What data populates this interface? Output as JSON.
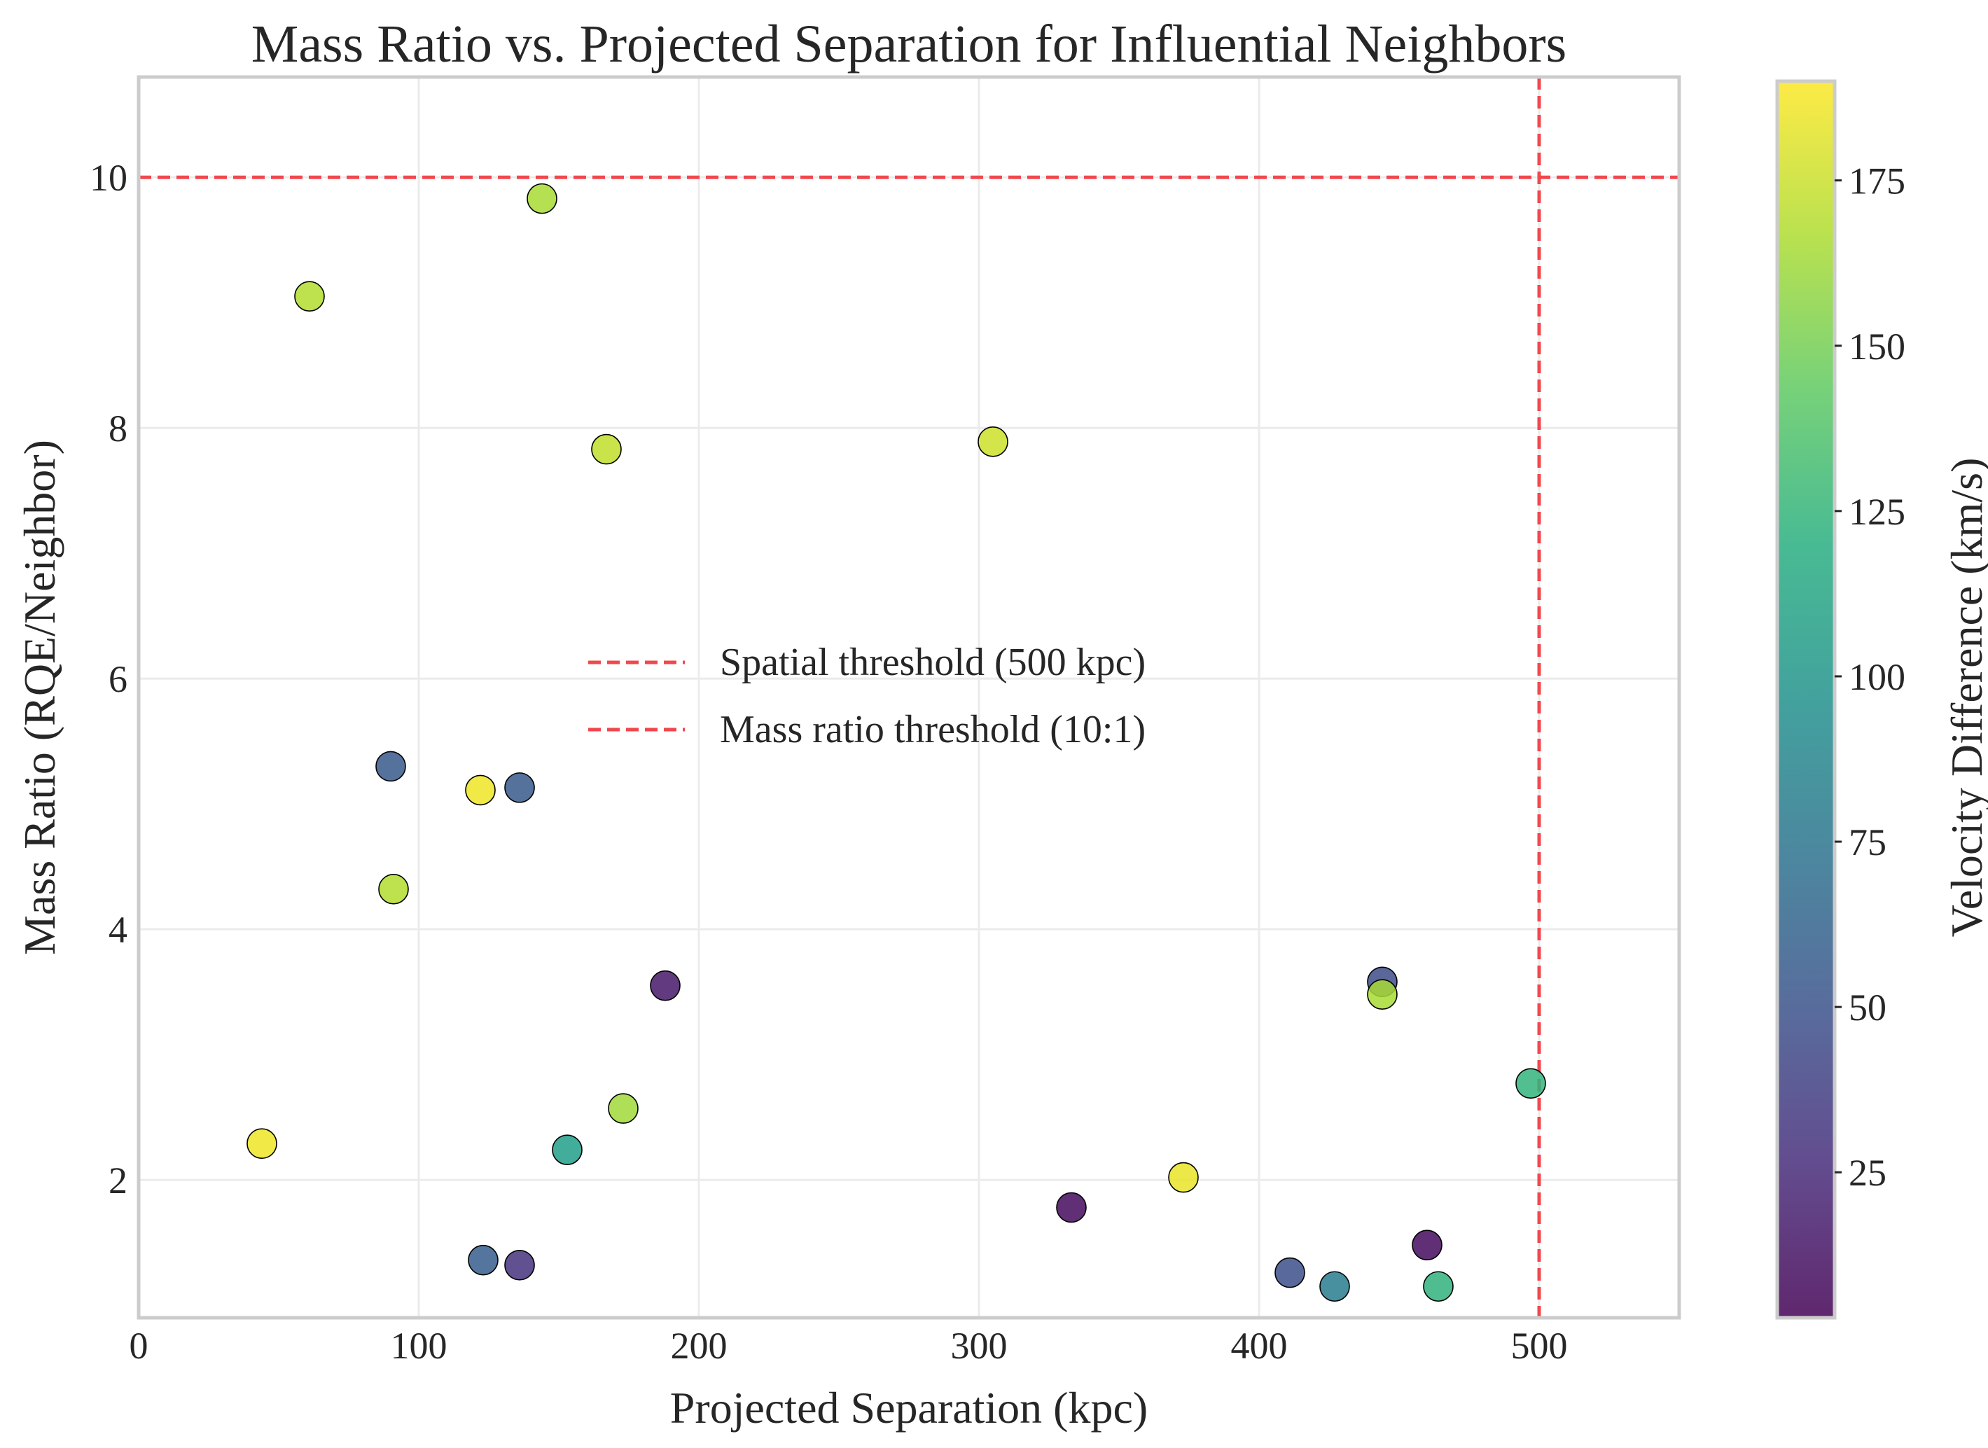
{
  "chart_data": {
    "type": "scatter",
    "title": "Mass Ratio vs. Projected Separation for Influential Neighbors",
    "xlabel": "Projected Separation (kpc)",
    "ylabel": "Mass Ratio (RQE/Neighbor)",
    "xlim": [
      0,
      550
    ],
    "ylim": [
      0.9,
      10.8
    ],
    "xticks": [
      0,
      100,
      200,
      300,
      400,
      500
    ],
    "yticks": [
      2,
      4,
      6,
      8,
      10
    ],
    "grid": true,
    "colorbar": {
      "label": "Velocity Difference (km/s)",
      "range": [
        3,
        190
      ],
      "ticks": [
        25,
        50,
        75,
        100,
        125,
        150,
        175
      ],
      "colormap": "viridis"
    },
    "thresholds": [
      {
        "name": "Spatial threshold (500 kpc)",
        "orientation": "vertical",
        "value": 500,
        "color": "#f0484e"
      },
      {
        "name": "Mass ratio threshold (10:1)",
        "orientation": "horizontal",
        "value": 10,
        "color": "#f0484e"
      }
    ],
    "legend": {
      "position": "center",
      "entries": [
        "Spatial threshold (500 kpc)",
        "Mass ratio threshold (10:1)"
      ]
    },
    "points": [
      {
        "x": 144,
        "y": 9.83,
        "v": 165
      },
      {
        "x": 61,
        "y": 9.05,
        "v": 168
      },
      {
        "x": 167,
        "y": 7.83,
        "v": 172
      },
      {
        "x": 305,
        "y": 7.89,
        "v": 176
      },
      {
        "x": 90,
        "y": 5.3,
        "v": 55
      },
      {
        "x": 122,
        "y": 5.11,
        "v": 186
      },
      {
        "x": 136,
        "y": 5.13,
        "v": 55
      },
      {
        "x": 91,
        "y": 4.32,
        "v": 168
      },
      {
        "x": 188,
        "y": 3.55,
        "v": 15
      },
      {
        "x": 444,
        "y": 3.58,
        "v": 45
      },
      {
        "x": 444,
        "y": 3.48,
        "v": 165
      },
      {
        "x": 497,
        "y": 2.77,
        "v": 125
      },
      {
        "x": 44,
        "y": 2.29,
        "v": 186
      },
      {
        "x": 173,
        "y": 2.57,
        "v": 163
      },
      {
        "x": 153,
        "y": 2.24,
        "v": 108
      },
      {
        "x": 373,
        "y": 2.02,
        "v": 184
      },
      {
        "x": 333,
        "y": 1.78,
        "v": 8
      },
      {
        "x": 123,
        "y": 1.36,
        "v": 58
      },
      {
        "x": 136,
        "y": 1.32,
        "v": 30
      },
      {
        "x": 411,
        "y": 1.26,
        "v": 48
      },
      {
        "x": 427,
        "y": 1.15,
        "v": 82
      },
      {
        "x": 460,
        "y": 1.48,
        "v": 8
      },
      {
        "x": 464,
        "y": 1.15,
        "v": 123
      }
    ]
  }
}
